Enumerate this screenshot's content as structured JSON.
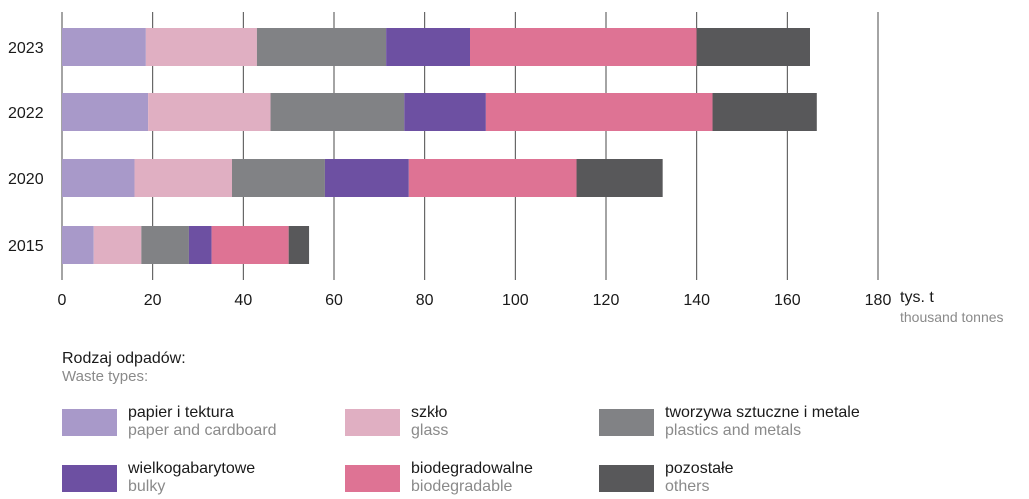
{
  "chart_data": {
    "type": "bar",
    "orientation": "horizontal",
    "stacked": true,
    "categories": [
      "2023",
      "2022",
      "2020",
      "2015"
    ],
    "series": [
      {
        "name": "papier i tektura",
        "name_en": "paper and cardboard",
        "color": "#a899c9",
        "values": [
          18.5,
          19,
          16,
          7
        ]
      },
      {
        "name": "szkło",
        "name_en": "glass",
        "color": "#e0afc2",
        "values": [
          24.5,
          27,
          21.5,
          10.5
        ]
      },
      {
        "name": "tworzywa sztuczne i metale",
        "name_en": "plastics and metals",
        "color": "#818285",
        "values": [
          28.5,
          29.5,
          20.5,
          10.5
        ]
      },
      {
        "name": "wielkogabarytowe",
        "name_en": "bulky",
        "color": "#6d50a2",
        "values": [
          18.5,
          18,
          18.5,
          5
        ]
      },
      {
        "name": "biodegradowalne",
        "name_en": "biodegradable",
        "color": "#de7394",
        "values": [
          50,
          50,
          37,
          17
        ]
      },
      {
        "name": "pozostałe",
        "name_en": "others",
        "color": "#58585a",
        "values": [
          25,
          23,
          19,
          4.5
        ]
      }
    ],
    "xlim": [
      0,
      180
    ],
    "x_ticks": [
      0,
      20,
      40,
      60,
      80,
      100,
      120,
      140,
      160,
      180
    ],
    "unit": "tys. t",
    "unit_en": "thousand tonnes",
    "grid": true,
    "legend_position": "bottom"
  },
  "legend": {
    "title": "Rodzaj odpadów:",
    "subtitle": "Waste types:"
  }
}
